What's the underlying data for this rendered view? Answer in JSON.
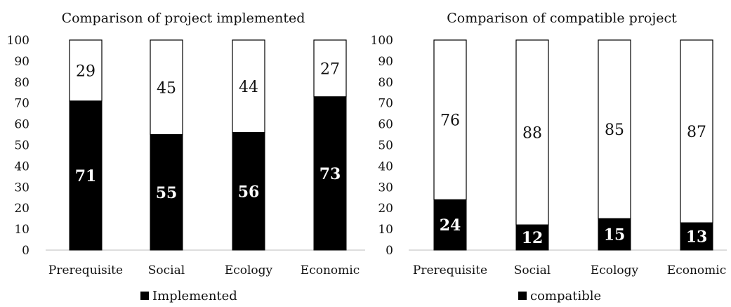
{
  "chart_data": [
    {
      "type": "bar",
      "stacked": true,
      "title": "Comparison of project implemented",
      "categories": [
        "Prerequisite",
        "Social",
        "Ecology",
        "Economic"
      ],
      "series": [
        {
          "name": "Implemented",
          "values": [
            71,
            55,
            56,
            73
          ],
          "color": "#000000"
        },
        {
          "values": [
            29,
            45,
            44,
            27
          ],
          "color": "#ffffff"
        }
      ],
      "ylim": [
        0,
        100
      ],
      "yticks": [
        0,
        10,
        20,
        30,
        40,
        50,
        60,
        70,
        80,
        90,
        100
      ],
      "grid": false,
      "legend": "bottom"
    },
    {
      "type": "bar",
      "stacked": true,
      "title": "Comparison of compatible project",
      "categories": [
        "Prerequisite",
        "Social",
        "Ecology",
        "Economic"
      ],
      "series": [
        {
          "name": "compatible",
          "values": [
            24,
            12,
            15,
            13
          ],
          "color": "#000000"
        },
        {
          "values": [
            76,
            88,
            85,
            87
          ],
          "color": "#ffffff"
        }
      ],
      "ylim": [
        0,
        100
      ],
      "yticks": [
        0,
        10,
        20,
        30,
        40,
        50,
        60,
        70,
        80,
        90,
        100
      ],
      "grid": false,
      "legend": "bottom"
    }
  ]
}
